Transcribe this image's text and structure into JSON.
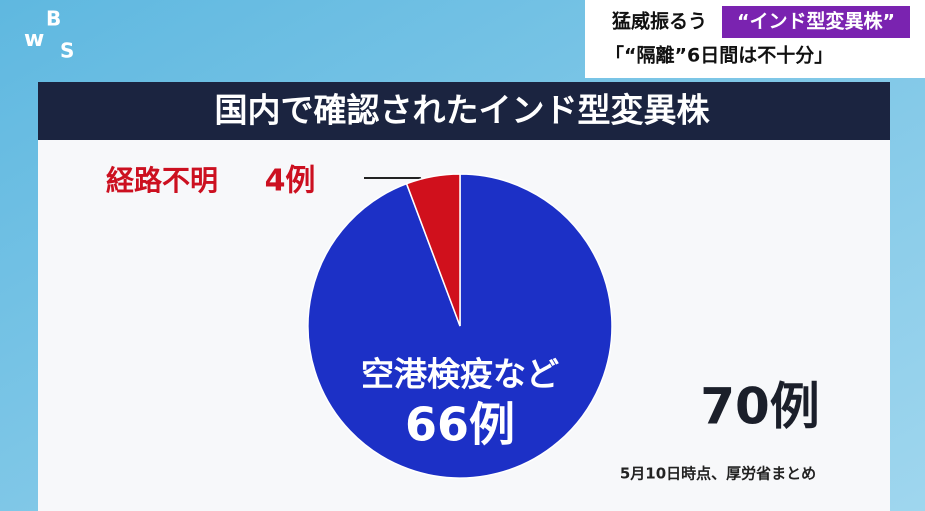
{
  "logo": [
    "w",
    "B",
    "S"
  ],
  "header": {
    "line1": "猛威振るう",
    "highlight": "“インド型変異株”",
    "line2": "「“隔離”6日間は不十分」"
  },
  "chart_data": {
    "type": "pie",
    "title": "国内で確認されたインド型変異株",
    "categories": [
      "空港検疫など",
      "経路不明"
    ],
    "values": [
      66,
      4
    ],
    "value_labels": [
      "66例",
      "4例"
    ],
    "colors": [
      "#1c30c6",
      "#d0101c"
    ],
    "total_label": "70例",
    "note": "5月10日時点、厚労省まとめ"
  }
}
